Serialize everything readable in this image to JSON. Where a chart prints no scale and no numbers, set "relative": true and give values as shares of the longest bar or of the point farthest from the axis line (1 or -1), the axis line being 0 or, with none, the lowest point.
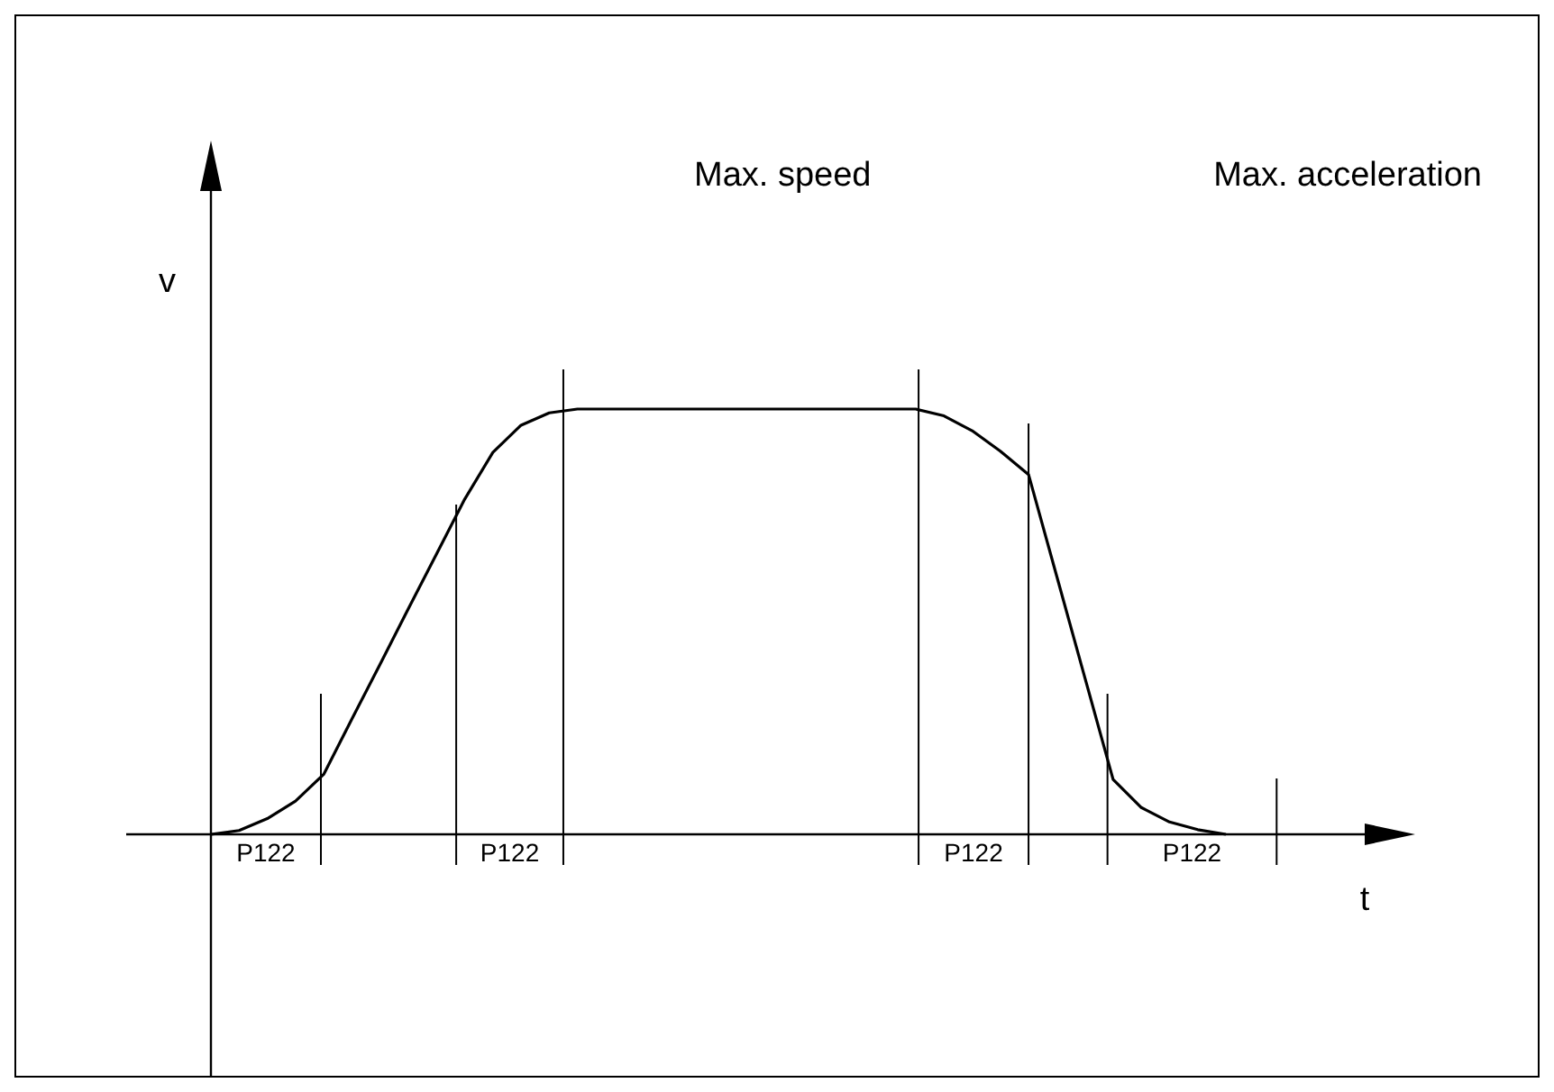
{
  "chart_data": {
    "type": "line",
    "relative": true,
    "xlabel": "t",
    "ylabel": "v",
    "marker": "none",
    "line_style": "solid",
    "categories": [
      null,
      null,
      null,
      null,
      null,
      null,
      null,
      null,
      null,
      null,
      null,
      null,
      null,
      null,
      null,
      null,
      null,
      null,
      null,
      null,
      null,
      null,
      null,
      null,
      null,
      null,
      null,
      null,
      null,
      null,
      null,
      null,
      null,
      null,
      null,
      null,
      null
    ],
    "annotations": [
      "Max. speed",
      "Max. acceleration",
      "P122",
      "P122",
      "P122",
      "P122"
    ],
    "series": [
      {
        "color": "#000000",
        "values": [
          0,
          0.009,
          0.037,
          0.078,
          0.141,
          0.271,
          0.4,
          0.53,
          0.659,
          0.788,
          0.898,
          0.962,
          0.991,
          1,
          1,
          1,
          1,
          1,
          1,
          1,
          1,
          1,
          1,
          1,
          1,
          1,
          0.984,
          0.949,
          0.901,
          0.846,
          0.607,
          0.368,
          0.129,
          0.063,
          0.029,
          0.011,
          0
        ]
      }
    ]
  }
}
